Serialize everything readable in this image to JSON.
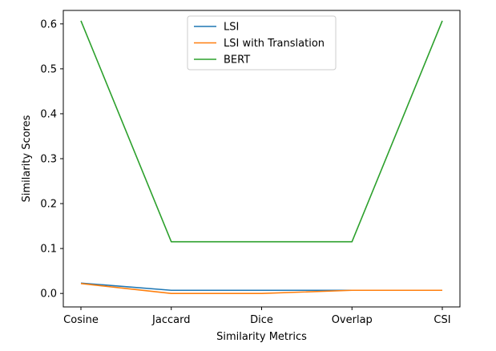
{
  "chart_data": {
    "type": "line",
    "title": "",
    "xlabel": "Similarity Metrics",
    "ylabel": "Similarity Scores",
    "categories": [
      "Cosine",
      "Jaccard",
      "Dice",
      "Overlap",
      "CSI"
    ],
    "ylim": [
      -0.03,
      0.63
    ],
    "yticks": [
      0.0,
      0.1,
      0.2,
      0.3,
      0.4,
      0.5,
      0.6
    ],
    "ytick_labels": [
      "0.0",
      "0.1",
      "0.2",
      "0.3",
      "0.4",
      "0.5",
      "0.6"
    ],
    "grid": false,
    "legend_position": "top-center",
    "series": [
      {
        "name": "LSI",
        "color": "#1f77b4",
        "values": [
          0.023,
          0.007,
          0.007,
          0.007,
          0.007
        ]
      },
      {
        "name": "LSI with Translation",
        "color": "#ff7f0e",
        "values": [
          0.022,
          0.0,
          0.0,
          0.007,
          0.007
        ]
      },
      {
        "name": "BERT",
        "color": "#2ca02c",
        "values": [
          0.607,
          0.115,
          0.115,
          0.115,
          0.607
        ]
      }
    ]
  }
}
